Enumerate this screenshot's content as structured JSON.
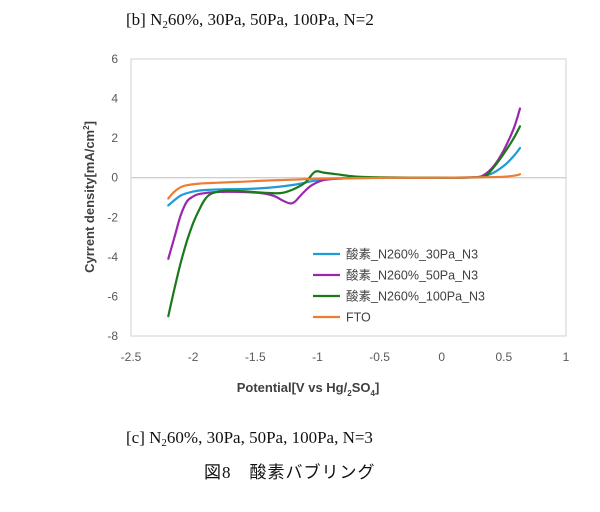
{
  "captions": {
    "top_prefix": "[b] N",
    "top_sub": "2",
    "top_rest": "60%,  30Pa,  50Pa,  100Pa,  N=2",
    "bottom_prefix": "[c] N",
    "bottom_sub": "2",
    "bottom_rest": "60%,  30Pa,  50Pa,  100Pa,  N=3",
    "figure": "図8　酸素バブリング"
  },
  "chart_data": {
    "type": "line",
    "xlabel_parts": [
      "Potential[V vs Hg/",
      "2",
      "SO",
      "4",
      "]"
    ],
    "ylabel_parts": [
      "Cyrrent density[mA/cm",
      "2",
      "]"
    ],
    "xlim": [
      -2.5,
      1
    ],
    "ylim": [
      -8,
      6
    ],
    "xticks": [
      "-2.5",
      "-2",
      "-1.5",
      "-1",
      "-0.5",
      "0",
      "0.5",
      "1"
    ],
    "yticks": [
      "-8",
      "-6",
      "-4",
      "-2",
      "0",
      "2",
      "4",
      "6"
    ],
    "grid": false,
    "legend_position": "center-right",
    "series": [
      {
        "name": "酸素_N260%_30Pa_N3",
        "color": "#1f9bd7",
        "points": [
          [
            -2.2,
            -1.4
          ],
          [
            -2.1,
            -0.9
          ],
          [
            -2.0,
            -0.7
          ],
          [
            -1.9,
            -0.62
          ],
          [
            -1.7,
            -0.58
          ],
          [
            -1.5,
            -0.55
          ],
          [
            -1.3,
            -0.45
          ],
          [
            -1.15,
            -0.32
          ],
          [
            -1.05,
            -0.18
          ],
          [
            -0.9,
            -0.06
          ],
          [
            -0.7,
            -0.02
          ],
          [
            -0.4,
            0
          ],
          [
            0.0,
            0
          ],
          [
            0.2,
            0.01
          ],
          [
            0.3,
            0.04
          ],
          [
            0.4,
            0.2
          ],
          [
            0.5,
            0.6
          ],
          [
            0.58,
            1.1
          ],
          [
            0.63,
            1.5
          ]
        ]
      },
      {
        "name": "酸素_N260%_50Pa_N3",
        "color": "#9b27af",
        "points": [
          [
            -2.2,
            -4.1
          ],
          [
            -2.15,
            -3.0
          ],
          [
            -2.1,
            -1.9
          ],
          [
            -2.05,
            -1.2
          ],
          [
            -2.0,
            -0.95
          ],
          [
            -1.95,
            -0.82
          ],
          [
            -1.8,
            -0.72
          ],
          [
            -1.6,
            -0.72
          ],
          [
            -1.45,
            -0.78
          ],
          [
            -1.35,
            -0.92
          ],
          [
            -1.28,
            -1.15
          ],
          [
            -1.22,
            -1.3
          ],
          [
            -1.18,
            -1.2
          ],
          [
            -1.12,
            -0.8
          ],
          [
            -1.05,
            -0.4
          ],
          [
            -0.95,
            -0.12
          ],
          [
            -0.8,
            -0.04
          ],
          [
            -0.5,
            0
          ],
          [
            0.0,
            0
          ],
          [
            0.25,
            0.02
          ],
          [
            0.33,
            0.1
          ],
          [
            0.42,
            0.6
          ],
          [
            0.5,
            1.4
          ],
          [
            0.58,
            2.5
          ],
          [
            0.63,
            3.5
          ]
        ]
      },
      {
        "name": "酸素_N260%_100Pa_N3",
        "color": "#1a7a1a",
        "points": [
          [
            -2.2,
            -7.0
          ],
          [
            -2.15,
            -5.6
          ],
          [
            -2.1,
            -4.3
          ],
          [
            -2.05,
            -3.2
          ],
          [
            -2.0,
            -2.3
          ],
          [
            -1.95,
            -1.6
          ],
          [
            -1.9,
            -1.05
          ],
          [
            -1.85,
            -0.8
          ],
          [
            -1.75,
            -0.66
          ],
          [
            -1.6,
            -0.68
          ],
          [
            -1.45,
            -0.75
          ],
          [
            -1.3,
            -0.78
          ],
          [
            -1.2,
            -0.6
          ],
          [
            -1.1,
            -0.25
          ],
          [
            -1.02,
            0.3
          ],
          [
            -0.95,
            0.26
          ],
          [
            -0.85,
            0.18
          ],
          [
            -0.7,
            0.06
          ],
          [
            -0.5,
            0.02
          ],
          [
            0.0,
            0
          ],
          [
            0.3,
            0.02
          ],
          [
            0.36,
            0.12
          ],
          [
            0.44,
            0.7
          ],
          [
            0.52,
            1.4
          ],
          [
            0.58,
            2.0
          ],
          [
            0.63,
            2.6
          ]
        ]
      },
      {
        "name": "FTO",
        "color": "#ed7d31",
        "points": [
          [
            -2.2,
            -1.05
          ],
          [
            -2.15,
            -0.7
          ],
          [
            -2.1,
            -0.48
          ],
          [
            -2.05,
            -0.38
          ],
          [
            -1.95,
            -0.3
          ],
          [
            -1.8,
            -0.25
          ],
          [
            -1.6,
            -0.2
          ],
          [
            -1.4,
            -0.14
          ],
          [
            -1.2,
            -0.1
          ],
          [
            -1.0,
            -0.05
          ],
          [
            -0.7,
            -0.02
          ],
          [
            -0.3,
            0
          ],
          [
            0.0,
            0
          ],
          [
            0.3,
            0.02
          ],
          [
            0.5,
            0.05
          ],
          [
            0.6,
            0.12
          ],
          [
            0.63,
            0.18
          ]
        ]
      }
    ]
  }
}
